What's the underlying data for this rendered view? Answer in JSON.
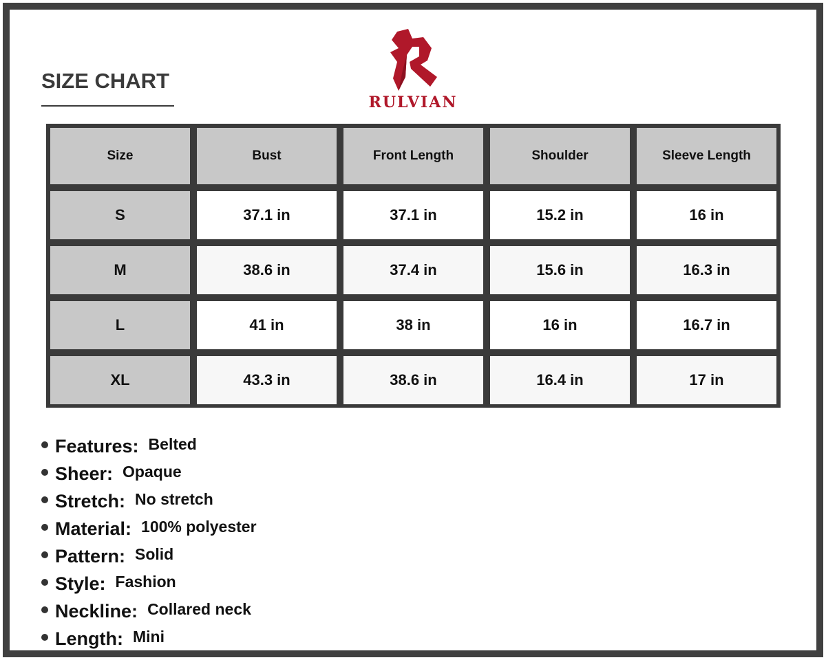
{
  "title": "SIZE CHART",
  "brand": {
    "name": "RULVIAN",
    "color": "#b0182a"
  },
  "table": {
    "headers": [
      "Size",
      "Bust",
      "Front Length",
      "Shoulder",
      "Sleeve Length"
    ],
    "rows": [
      [
        "S",
        "37.1 in",
        "37.1 in",
        "15.2 in",
        "16 in"
      ],
      [
        "M",
        "38.6 in",
        "37.4 in",
        "15.6 in",
        "16.3 in"
      ],
      [
        "L",
        "41 in",
        "38 in",
        "16 in",
        "16.7 in"
      ],
      [
        "XL",
        "43.3 in",
        "38.6 in",
        "16.4 in",
        "17 in"
      ]
    ]
  },
  "features": [
    {
      "label": "Features:",
      "value": "Belted"
    },
    {
      "label": "Sheer:",
      "value": "Opaque"
    },
    {
      "label": "Stretch:",
      "value": "No stretch"
    },
    {
      "label": "Material:",
      "value": "100% polyester"
    },
    {
      "label": "Pattern:",
      "value": "Solid"
    },
    {
      "label": "Style:",
      "value": "Fashion"
    },
    {
      "label": "Neckline:",
      "value": "Collared neck"
    },
    {
      "label": "Length:",
      "value": "Mini"
    }
  ]
}
